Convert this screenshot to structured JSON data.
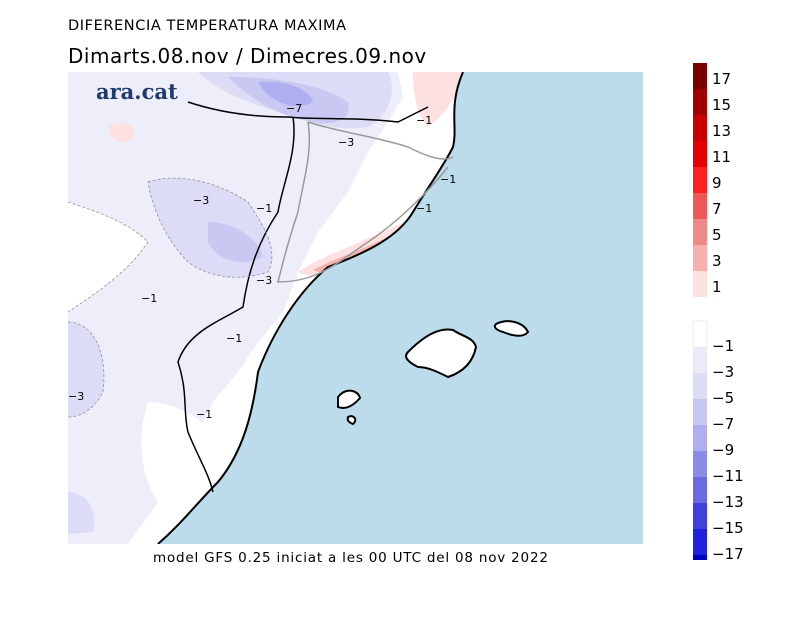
{
  "header": {
    "title": "DIFERENCIA TEMPERATURA MAXIMA",
    "subtitle": "Dimarts.08.nov / Dimecres.09.nov"
  },
  "footer": {
    "text": "model GFS 0.25 iniciat a les 00 UTC del 08 nov 2022"
  },
  "logo": {
    "text": "ara.cat"
  },
  "map": {
    "sea_color": "#bcdcec",
    "contour_labels": [
      "-7",
      "-3",
      "-1",
      "-1",
      "-3",
      "-1",
      "-1",
      "-3",
      "-1",
      "-1",
      "-3",
      "-1"
    ]
  },
  "legend": {
    "positive": {
      "labels": [
        "17",
        "15",
        "13",
        "11",
        "9",
        "7",
        "5",
        "3",
        "1"
      ],
      "colors": [
        "#7a0000",
        "#a00000",
        "#c80000",
        "#e60000",
        "#ff2020",
        "#f05858",
        "#f08a8a",
        "#f7b0b0",
        "#fde0e0"
      ]
    },
    "negative": {
      "labels": [
        "-1",
        "-3",
        "-5",
        "-7",
        "-9",
        "-11",
        "-13",
        "-15",
        "-17"
      ],
      "colors": [
        "#ffffff",
        "#eaeaf8",
        "#dcdcf6",
        "#c8c8f2",
        "#aeaef0",
        "#8c8ce8",
        "#6a6ae2",
        "#4040dd",
        "#2020dd",
        "#0000c0"
      ]
    }
  }
}
